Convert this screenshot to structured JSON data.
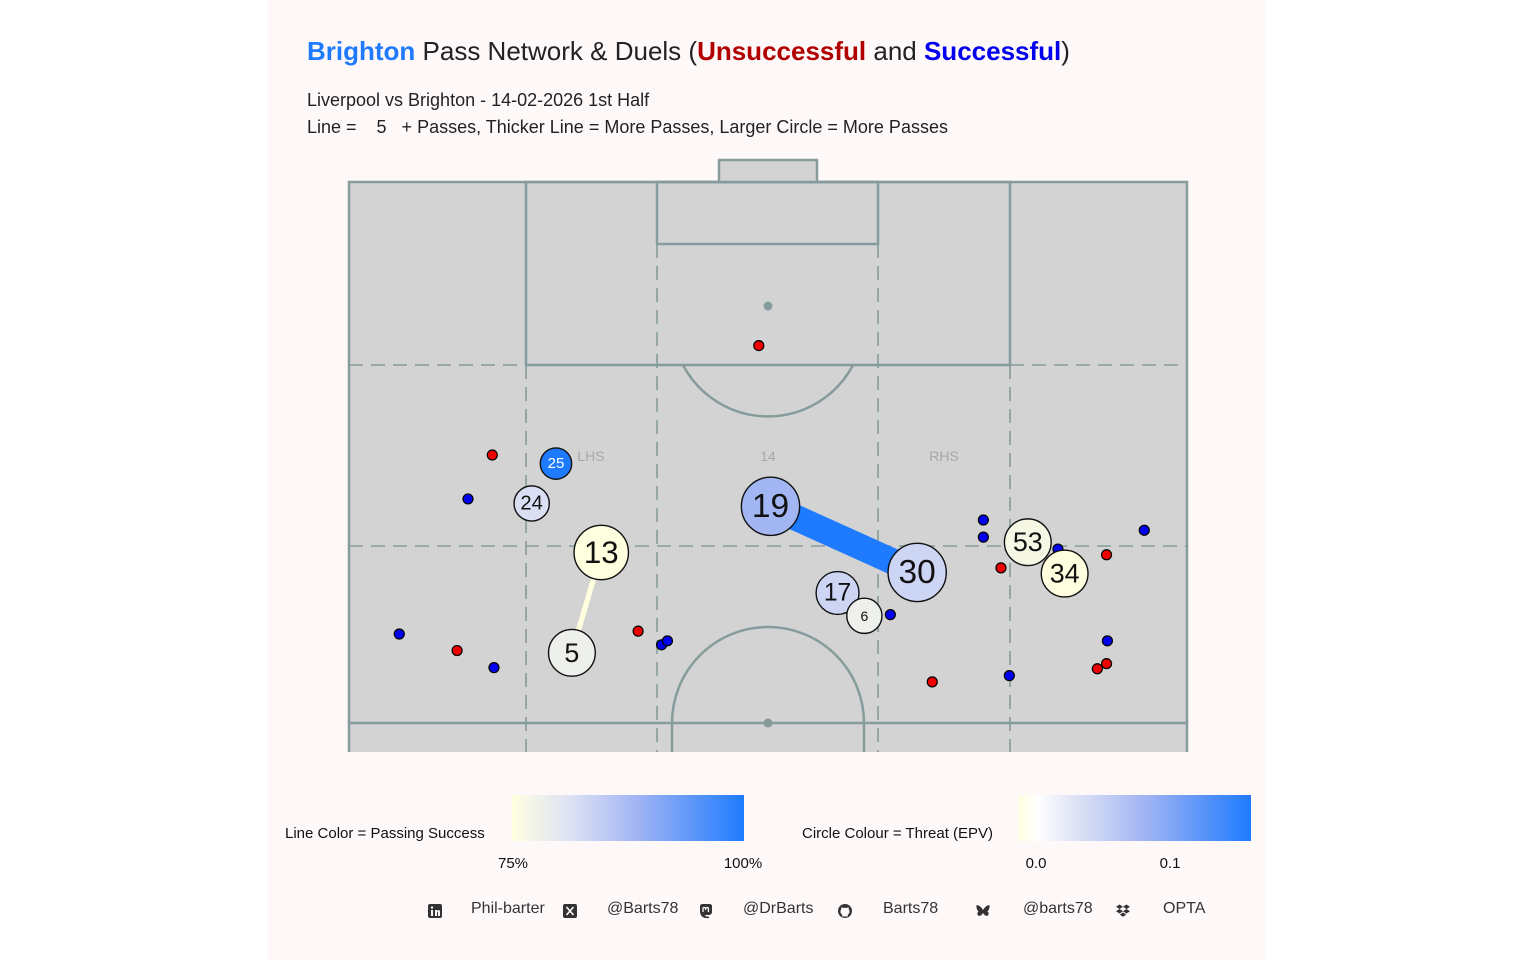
{
  "title": {
    "team": "Brighton",
    "middle": " Pass Network & Duels (",
    "unsuccessful": "Unsuccessful",
    "and": " and ",
    "successful": "Successful",
    "end": ")"
  },
  "subtitle": "Liverpool vs Brighton - 14-02-2026 1st Half",
  "line_note": "Line =    5   + Passes, Thicker Line = More Passes, Larger Circle = More Passes",
  "colors": {
    "team": "#1e7bff",
    "unsuccessful": "#ee0000",
    "successful": "#0000ee",
    "pitch": "#d3d3d3",
    "pitch_lines": "#869c9c",
    "low": "#ffffe0",
    "high": "#1e7bff"
  },
  "zone_labels": [
    "LHS",
    "14",
    "RHS"
  ],
  "legend": {
    "line_title": "Line Color = Passing Success",
    "line_ticks": [
      "75%",
      "100%"
    ],
    "circle_title": "Circle Colour = Threat (EPV)",
    "circle_ticks": [
      "0.0",
      "0.1"
    ]
  },
  "footer": [
    {
      "icon": "linkedin-icon",
      "text": "Phil-barter"
    },
    {
      "icon": "x-icon",
      "text": "@Barts78"
    },
    {
      "icon": "mastodon-icon",
      "text": "@DrBarts"
    },
    {
      "icon": "github-icon",
      "text": "Barts78"
    },
    {
      "icon": "bluesky-icon",
      "text": "@barts78"
    },
    {
      "icon": "dropbox-icon",
      "text": "OPTA"
    }
  ],
  "chart_data": {
    "type": "scatter",
    "pitch_axes": "x = 0 (left touchline) to 100 (right touchline); y = 0 (attacking goal line) to 100 (near end of pitch shown)",
    "players": [
      {
        "number": "25",
        "x": 24.7,
        "y": 49.4,
        "passes": 4,
        "epv": 0.15
      },
      {
        "number": "24",
        "x": 21.8,
        "y": 56.4,
        "passes": 5,
        "epv": 0.04
      },
      {
        "number": "13",
        "x": 30.1,
        "y": 65.0,
        "passes": 10,
        "epv": 0.0
      },
      {
        "number": "5",
        "x": 26.6,
        "y": 82.6,
        "passes": 8,
        "epv": 0.02
      },
      {
        "number": "19",
        "x": 50.3,
        "y": 56.9,
        "passes": 11,
        "epv": 0.08
      },
      {
        "number": "30",
        "x": 67.8,
        "y": 68.5,
        "passes": 11,
        "epv": 0.05
      },
      {
        "number": "17",
        "x": 58.3,
        "y": 72.1,
        "passes": 7,
        "epv": 0.05
      },
      {
        "number": "6",
        "x": 61.5,
        "y": 76.1,
        "passes": 5,
        "epv": 0.02
      },
      {
        "number": "53",
        "x": 81.0,
        "y": 63.2,
        "passes": 8,
        "epv": 0.01
      },
      {
        "number": "34",
        "x": 85.4,
        "y": 68.7,
        "passes": 8,
        "epv": 0.0
      }
    ],
    "pass_links": [
      {
        "from": "19",
        "to": "30",
        "passes": 9,
        "success": 1.0
      },
      {
        "from": "13",
        "to": "5",
        "passes": 5,
        "success": 0.75
      }
    ],
    "duels": {
      "unsuccessful": [
        {
          "x": 48.9,
          "y": 28.7
        },
        {
          "x": 17.1,
          "y": 47.9
        },
        {
          "x": 34.5,
          "y": 78.8
        },
        {
          "x": 12.9,
          "y": 82.2
        },
        {
          "x": 69.6,
          "y": 87.7
        },
        {
          "x": 77.8,
          "y": 67.7
        },
        {
          "x": 90.4,
          "y": 65.4
        },
        {
          "x": 90.4,
          "y": 84.5
        },
        {
          "x": 89.3,
          "y": 85.4
        }
      ],
      "successful": [
        {
          "x": 14.2,
          "y": 55.6
        },
        {
          "x": 6.0,
          "y": 79.3
        },
        {
          "x": 17.3,
          "y": 85.2
        },
        {
          "x": 37.3,
          "y": 81.2
        },
        {
          "x": 38.0,
          "y": 80.5
        },
        {
          "x": 64.6,
          "y": 75.9
        },
        {
          "x": 75.7,
          "y": 59.3
        },
        {
          "x": 75.7,
          "y": 62.3
        },
        {
          "x": 84.6,
          "y": 64.4
        },
        {
          "x": 94.9,
          "y": 61.1
        },
        {
          "x": 90.5,
          "y": 80.5
        },
        {
          "x": 78.8,
          "y": 86.6
        }
      ]
    }
  }
}
